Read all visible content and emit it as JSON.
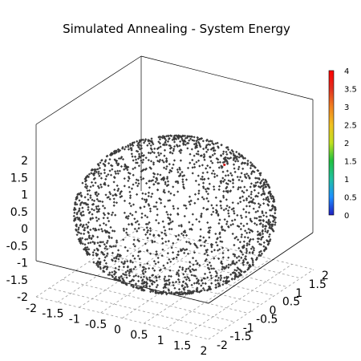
{
  "chart_data": {
    "type": "scatter",
    "title": "Simulated Annealing - System Energy",
    "xlabel": "",
    "ylabel": "",
    "zlabel": "",
    "x_ticks": [
      "-2",
      "-1.5",
      "-1",
      "-0.5",
      "0",
      "0.5",
      "1",
      "1.5",
      "2"
    ],
    "y_ticks": [
      "-2",
      "-1.5",
      "-1",
      "-0.5",
      "0",
      "0.5",
      "1",
      "1.5",
      "2"
    ],
    "z_ticks": [
      "-2",
      "-1.5",
      "-1",
      "-0.5",
      "0",
      "0.5",
      "1",
      "1.5",
      "2"
    ],
    "xlim": [
      -2,
      2
    ],
    "ylim": [
      -2,
      2
    ],
    "zlim": [
      -2,
      2
    ],
    "grid": "dashed base plane",
    "colorbar": {
      "ticks": [
        "0",
        "0.5",
        "1",
        "1.5",
        "2",
        "2.5",
        "3",
        "3.5",
        "4"
      ],
      "range": [
        0,
        4
      ],
      "colors": [
        "#2020c0",
        "#1e90ff",
        "#20c0a0",
        "#20c040",
        "#c0e020",
        "#f0c020",
        "#f08020",
        "#e03020",
        "#ff0000"
      ]
    },
    "series": [
      {
        "points_on": "sphere",
        "radius": 2.0,
        "count": 2000,
        "color": "#3a3a3a",
        "value_approx": 0
      },
      {
        "points_on": "single highlighted point",
        "x": 0.6,
        "y": 0.9,
        "z": 1.2,
        "color": "#d02020",
        "value_approx": 4
      }
    ]
  }
}
